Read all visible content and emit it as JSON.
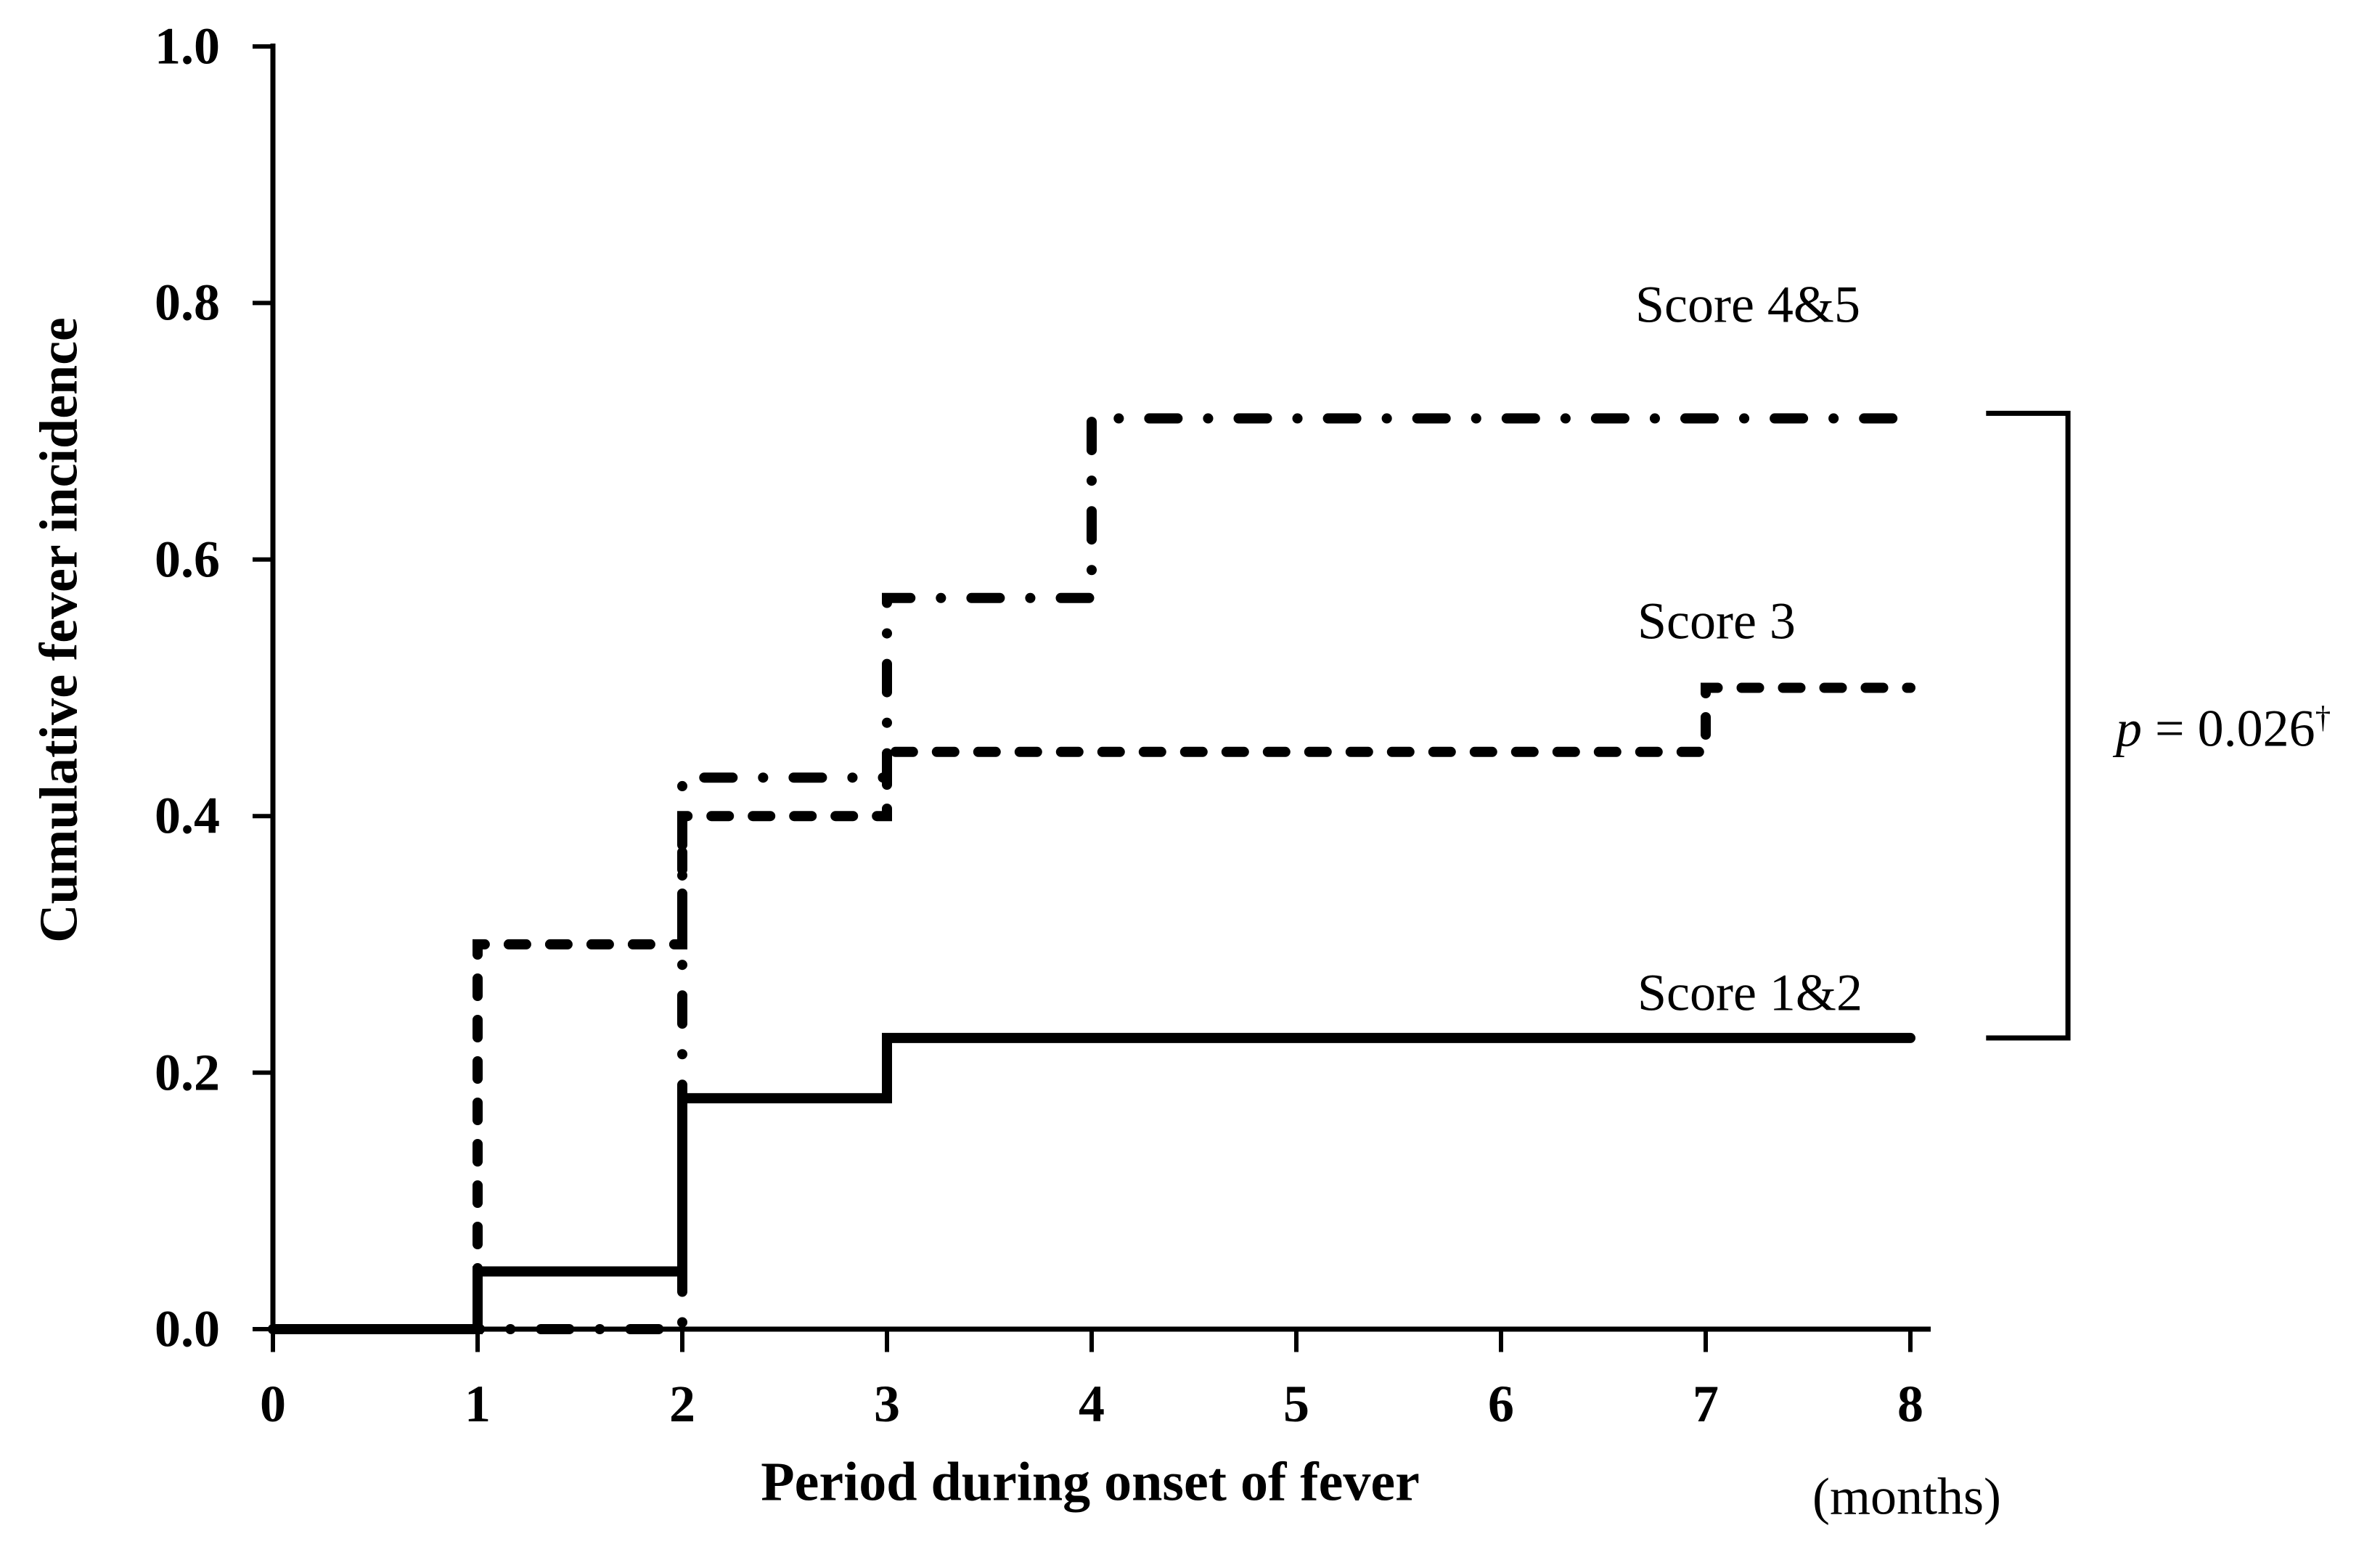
{
  "figure": {
    "background": "#ffffff",
    "ink_color": "#000000"
  },
  "chart_data": {
    "type": "line",
    "subtype": "step-post",
    "title": "",
    "xlabel": "Period during onset of fever",
    "x_unit_label": "(months)",
    "ylabel": "Cumulative fever incidence",
    "xlim": [
      0,
      8
    ],
    "ylim": [
      0.0,
      1.0
    ],
    "x_ticks": [
      0,
      1,
      2,
      3,
      4,
      5,
      6,
      7,
      8
    ],
    "x_tick_labels": [
      "0",
      "1",
      "2",
      "3",
      "4",
      "5",
      "6",
      "7",
      "8"
    ],
    "y_ticks": [
      0.0,
      0.2,
      0.4,
      0.6,
      0.8,
      1.0
    ],
    "y_tick_labels": [
      "0.0",
      "0.2",
      "0.4",
      "0.6",
      "0.8",
      "1.0"
    ],
    "grid": false,
    "legend_position": "inline-right-of-curves",
    "series": [
      {
        "name": "Score 4&5",
        "line_style": "dash-dot",
        "color": "#000000",
        "points": [
          [
            0,
            0
          ],
          [
            2,
            0
          ],
          [
            2,
            0.43
          ],
          [
            3,
            0.43
          ],
          [
            3,
            0.57
          ],
          [
            4,
            0.57
          ],
          [
            4,
            0.71
          ],
          [
            8,
            0.71
          ]
        ]
      },
      {
        "name": "Score 3",
        "line_style": "dashed",
        "color": "#000000",
        "points": [
          [
            0,
            0
          ],
          [
            1,
            0
          ],
          [
            1,
            0.3
          ],
          [
            2,
            0.3
          ],
          [
            2,
            0.4
          ],
          [
            3,
            0.4
          ],
          [
            3,
            0.45
          ],
          [
            7,
            0.45
          ],
          [
            7,
            0.5
          ],
          [
            8,
            0.5
          ]
        ]
      },
      {
        "name": "Score 1&2",
        "line_style": "solid",
        "color": "#000000",
        "points": [
          [
            0,
            0
          ],
          [
            1,
            0
          ],
          [
            1,
            0.045
          ],
          [
            2,
            0.045
          ],
          [
            2,
            0.18
          ],
          [
            3,
            0.18
          ],
          [
            3,
            0.227
          ],
          [
            8,
            0.227
          ]
        ]
      }
    ],
    "annotation": {
      "text_p": "p",
      "text_rest": " = 0.026",
      "dagger": "†",
      "bracket": {
        "x_arm": 8.37,
        "x_line": 8.77,
        "y_top": 0.714,
        "y_bottom": 0.227
      }
    }
  }
}
